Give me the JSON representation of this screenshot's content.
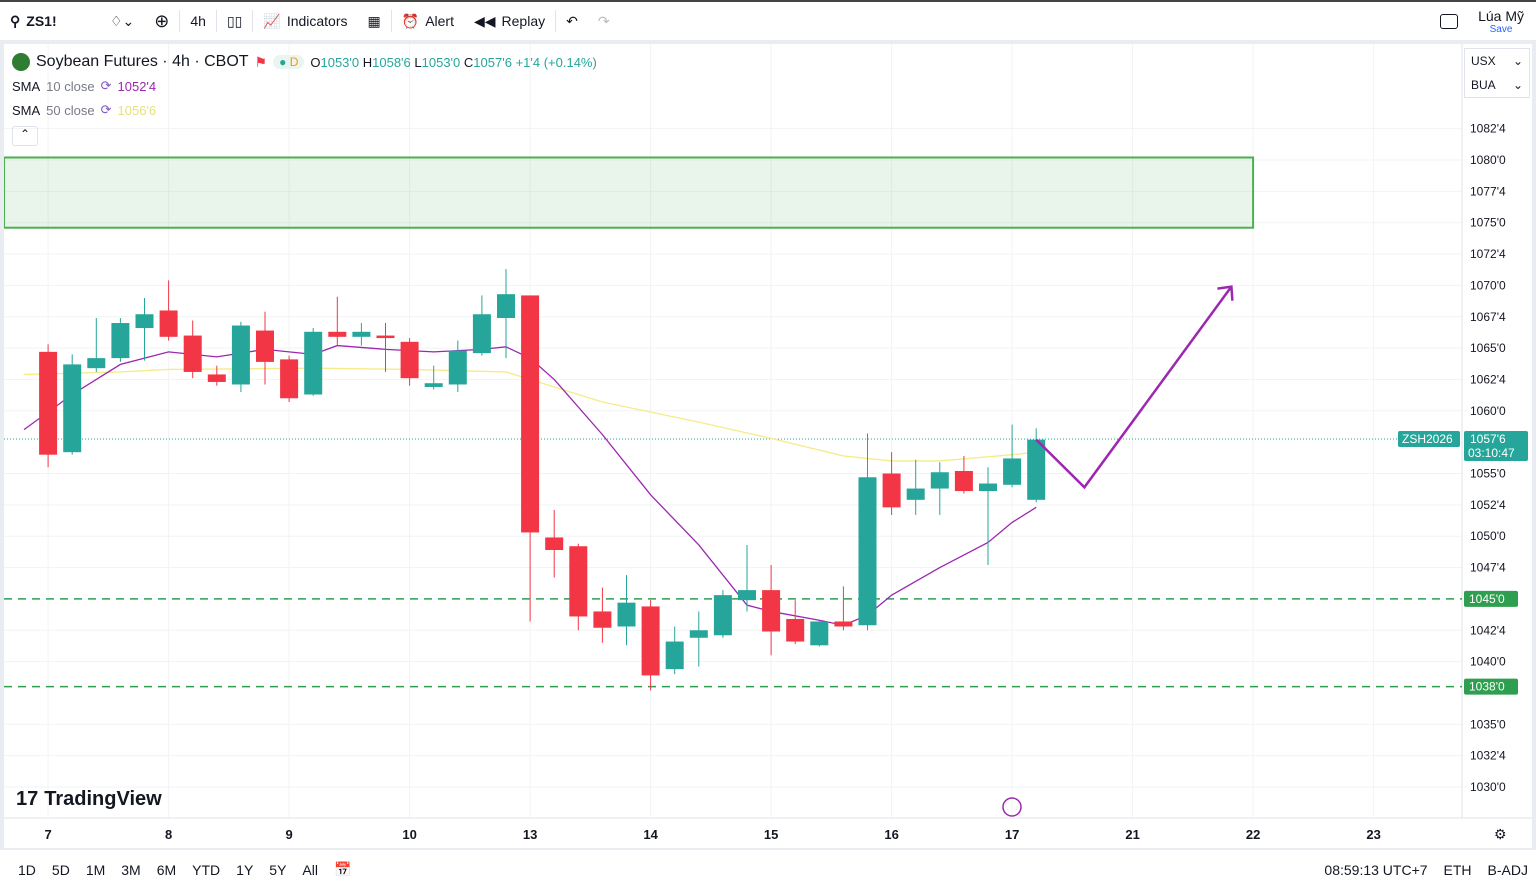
{
  "toolbar": {
    "symbol": "ZS1!",
    "interval": "4h",
    "indicators": "Indicators",
    "alert": "Alert",
    "replay": "Replay",
    "layout_name": "Lúa Mỹ",
    "save": "Save"
  },
  "legend": {
    "title": "Soybean Futures · 4h · CBOT",
    "d_badge": "D",
    "o_label": "O",
    "o": "1053'0",
    "h_label": "H",
    "h": "1058'6",
    "l_label": "L",
    "l": "1053'0",
    "c_label": "C",
    "c": "1057'6",
    "change": "+1'4 (+0.14%)",
    "sma10": {
      "name": "SMA",
      "params": "10 close",
      "value": "1052'4"
    },
    "sma50": {
      "name": "SMA",
      "params": "50 close",
      "value": "1056'6"
    }
  },
  "units": {
    "currency": "USX",
    "unit": "BUA"
  },
  "symbol_label": "ZSH2026",
  "last_price": "1057'6",
  "countdown": "03:10:47",
  "logo": "TradingView",
  "colors": {
    "up": "#26a69a",
    "down": "#f23645",
    "sma10": "#9c27b0",
    "sma50": "#f5eb8a",
    "zone": "#4caf50",
    "arrow": "#9c27b0"
  },
  "bottom": {
    "ranges": [
      "1D",
      "5D",
      "1M",
      "3M",
      "6M",
      "YTD",
      "1Y",
      "5Y",
      "All"
    ],
    "time": "08:59:13 UTC+7",
    "session": "ETH",
    "adj": "B-ADJ"
  },
  "chart_data": {
    "type": "candlestick",
    "price_range": [
      1027.5,
      1089
    ],
    "price_ticks": [
      {
        "v": 1082.5,
        "t": "1082'4"
      },
      {
        "v": 1080,
        "t": "1080'0"
      },
      {
        "v": 1077.5,
        "t": "1077'4"
      },
      {
        "v": 1075,
        "t": "1075'0"
      },
      {
        "v": 1072.5,
        "t": "1072'4"
      },
      {
        "v": 1070,
        "t": "1070'0"
      },
      {
        "v": 1067.5,
        "t": "1067'4"
      },
      {
        "v": 1065,
        "t": "1065'0"
      },
      {
        "v": 1062.5,
        "t": "1062'4"
      },
      {
        "v": 1060,
        "t": "1060'0"
      },
      {
        "v": 1055,
        "t": "1055'0"
      },
      {
        "v": 1052.5,
        "t": "1052'4"
      },
      {
        "v": 1050,
        "t": "1050'0"
      },
      {
        "v": 1047.5,
        "t": "1047'4"
      },
      {
        "v": 1042.5,
        "t": "1042'4"
      },
      {
        "v": 1040,
        "t": "1040'0"
      },
      {
        "v": 1035,
        "t": "1035'0"
      },
      {
        "v": 1032.5,
        "t": "1032'4"
      },
      {
        "v": 1030,
        "t": "1030'0"
      }
    ],
    "time_ticks": [
      {
        "i": 1,
        "t": "7"
      },
      {
        "i": 6,
        "t": "8"
      },
      {
        "i": 11,
        "t": "9"
      },
      {
        "i": 16,
        "t": "10"
      },
      {
        "i": 21,
        "t": "13"
      },
      {
        "i": 26,
        "t": "14"
      },
      {
        "i": 31,
        "t": "15"
      },
      {
        "i": 36,
        "t": "16"
      },
      {
        "i": 41,
        "t": "17"
      },
      {
        "i": 46,
        "t": "21"
      },
      {
        "i": 51,
        "t": "22"
      },
      {
        "i": 56,
        "t": "23"
      }
    ],
    "candles": [
      [
        1,
        1064.7,
        1065.3,
        1055.5,
        1056.5
      ],
      [
        2,
        1056.7,
        1064.5,
        1056.5,
        1063.7
      ],
      [
        3,
        1063.4,
        1067.4,
        1063.1,
        1064.2
      ],
      [
        4,
        1064.2,
        1067.4,
        1063.9,
        1067.0
      ],
      [
        5,
        1066.6,
        1069.0,
        1064.0,
        1067.7
      ],
      [
        6,
        1068.0,
        1070.4,
        1065.6,
        1065.9
      ],
      [
        7,
        1066.0,
        1067.2,
        1062.6,
        1063.1
      ],
      [
        8,
        1062.9,
        1063.6,
        1062.0,
        1062.3
      ],
      [
        9,
        1062.1,
        1067.1,
        1061.5,
        1066.8
      ],
      [
        10,
        1066.4,
        1067.9,
        1062.1,
        1063.9
      ],
      [
        11,
        1064.1,
        1064.4,
        1060.7,
        1061.0
      ],
      [
        12,
        1061.3,
        1066.6,
        1061.2,
        1066.3
      ],
      [
        13,
        1066.3,
        1069.1,
        1065.2,
        1065.9
      ],
      [
        14,
        1065.9,
        1067.0,
        1065.2,
        1066.3
      ],
      [
        15,
        1066.0,
        1067.0,
        1063.1,
        1065.8
      ],
      [
        16,
        1065.5,
        1065.8,
        1062.0,
        1062.6
      ],
      [
        17,
        1061.9,
        1063.6,
        1061.7,
        1062.2
      ],
      [
        18,
        1062.1,
        1065.6,
        1061.5,
        1064.8
      ],
      [
        19,
        1064.6,
        1069.2,
        1064.4,
        1067.7
      ],
      [
        20,
        1067.4,
        1071.3,
        1064.2,
        1069.3
      ],
      [
        21,
        1069.2,
        1069.2,
        1043.2,
        1050.3
      ],
      [
        22,
        1049.9,
        1052.1,
        1046.7,
        1048.9
      ],
      [
        23,
        1049.2,
        1049.4,
        1042.5,
        1043.6
      ],
      [
        24,
        1044.0,
        1045.9,
        1041.5,
        1042.7
      ],
      [
        25,
        1042.8,
        1046.9,
        1041.3,
        1044.7
      ],
      [
        26,
        1044.4,
        1044.9,
        1037.7,
        1038.9
      ],
      [
        27,
        1039.4,
        1042.8,
        1039.0,
        1041.6
      ],
      [
        28,
        1041.9,
        1044.0,
        1039.6,
        1042.5
      ],
      [
        29,
        1042.1,
        1045.7,
        1041.9,
        1045.3
      ],
      [
        30,
        1044.9,
        1049.3,
        1044.0,
        1045.7
      ],
      [
        31,
        1045.7,
        1047.7,
        1040.5,
        1042.4
      ],
      [
        32,
        1043.4,
        1044.9,
        1041.4,
        1041.6
      ],
      [
        33,
        1041.3,
        1043.3,
        1041.2,
        1043.2
      ],
      [
        34,
        1043.2,
        1046.0,
        1042.5,
        1042.8
      ],
      [
        35,
        1042.9,
        1058.2,
        1042.5,
        1054.7
      ],
      [
        36,
        1055.0,
        1056.7,
        1051.7,
        1052.3
      ],
      [
        37,
        1052.9,
        1056.1,
        1051.7,
        1053.8
      ],
      [
        38,
        1053.8,
        1055.9,
        1051.7,
        1055.1
      ],
      [
        39,
        1055.2,
        1056.4,
        1053.4,
        1053.6
      ],
      [
        40,
        1053.6,
        1055.5,
        1047.7,
        1054.2
      ],
      [
        41,
        1054.1,
        1058.9,
        1053.9,
        1056.2
      ],
      [
        42,
        1052.9,
        1058.6,
        1052.7,
        1057.7
      ]
    ],
    "sma10": [
      [
        0,
        1058.5
      ],
      [
        2,
        1061.3
      ],
      [
        4,
        1063.7
      ],
      [
        6,
        1064.7
      ],
      [
        8,
        1064.3
      ],
      [
        10,
        1064.9
      ],
      [
        12,
        1064.5
      ],
      [
        13,
        1065.2
      ],
      [
        15,
        1064.9
      ],
      [
        17,
        1064.7
      ],
      [
        19,
        1064.9
      ],
      [
        20,
        1065.1
      ],
      [
        21,
        1064.2
      ],
      [
        22,
        1062.5
      ],
      [
        24,
        1058.1
      ],
      [
        26,
        1053.3
      ],
      [
        28,
        1049.3
      ],
      [
        30,
        1044.5
      ],
      [
        31,
        1044.0
      ],
      [
        33,
        1043.3
      ],
      [
        34,
        1042.9
      ],
      [
        35,
        1043.7
      ],
      [
        36,
        1045.3
      ],
      [
        38,
        1047.5
      ],
      [
        40,
        1049.5
      ],
      [
        41,
        1051.1
      ],
      [
        42,
        1052.3
      ]
    ],
    "sma50": [
      [
        0,
        1062.9
      ],
      [
        4,
        1063.1
      ],
      [
        6,
        1063.3
      ],
      [
        12,
        1063.4
      ],
      [
        16,
        1063.3
      ],
      [
        20,
        1063.1
      ],
      [
        21,
        1062.5
      ],
      [
        24,
        1060.7
      ],
      [
        28,
        1059.1
      ],
      [
        31,
        1057.8
      ],
      [
        34,
        1056.4
      ],
      [
        36,
        1056.0
      ],
      [
        38,
        1056.0
      ],
      [
        41,
        1056.5
      ],
      [
        42,
        1056.7
      ]
    ],
    "zone": {
      "from": 1074.6,
      "to": 1080.2,
      "end_index": 51
    },
    "hlines": [
      {
        "v": 1045,
        "t": "1045'0"
      },
      {
        "v": 1038,
        "t": "1038'0"
      }
    ],
    "projection": [
      [
        42,
        1057.7
      ],
      [
        44,
        1053.9
      ],
      [
        50.1,
        1069.9
      ]
    ]
  }
}
